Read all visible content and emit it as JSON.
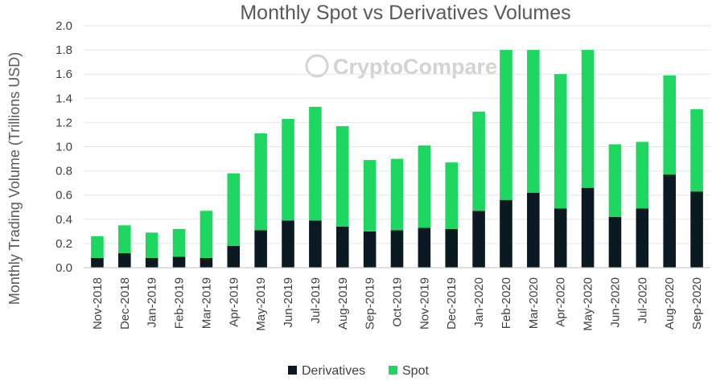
{
  "chart_data": {
    "type": "bar",
    "stacked": true,
    "title": "Monthly Spot vs Derivatives Volumes",
    "xlabel": "",
    "ylabel": "Monthly Trading Volume (Trillions USD)",
    "ylim": [
      0,
      2.0
    ],
    "yticks": [
      "0.0",
      "0.2",
      "0.4",
      "0.6",
      "0.8",
      "1.0",
      "1.2",
      "1.4",
      "1.6",
      "1.8",
      "2.0"
    ],
    "grid": true,
    "legend": "bottom",
    "watermark": "CryptoCompare",
    "categories": [
      "Nov-2018",
      "Dec-2018",
      "Jan-2019",
      "Feb-2019",
      "Mar-2019",
      "Apr-2019",
      "May-2019",
      "Jun-2019",
      "Jul-2019",
      "Aug-2019",
      "Sep-2019",
      "Oct-2019",
      "Nov-2019",
      "Dec-2019",
      "Jan-2020",
      "Feb-2020",
      "Mar-2020",
      "Apr-2020",
      "May-2020",
      "Jun-2020",
      "Jul-2020",
      "Aug-2020",
      "Sep-2020"
    ],
    "series": [
      {
        "name": "Derivatives",
        "color": "#0b1a22",
        "values": [
          0.08,
          0.12,
          0.08,
          0.09,
          0.08,
          0.18,
          0.31,
          0.39,
          0.39,
          0.34,
          0.3,
          0.31,
          0.33,
          0.32,
          0.47,
          0.56,
          0.62,
          0.49,
          0.66,
          0.42,
          0.49,
          0.77,
          0.63
        ]
      },
      {
        "name": "Spot",
        "color": "#1ed760",
        "values": [
          0.18,
          0.23,
          0.21,
          0.23,
          0.39,
          0.6,
          0.8,
          0.84,
          0.94,
          0.83,
          0.59,
          0.59,
          0.68,
          0.55,
          0.82,
          1.24,
          1.18,
          1.11,
          1.14,
          0.6,
          0.55,
          0.82,
          0.68
        ]
      }
    ]
  }
}
